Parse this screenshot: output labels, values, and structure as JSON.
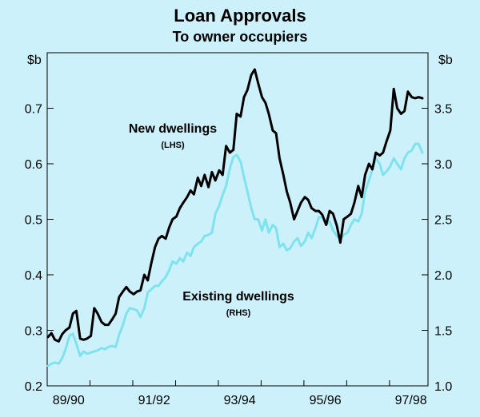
{
  "chart_data": {
    "type": "line",
    "title": "Loan Approvals",
    "subtitle": "To owner occupiers",
    "left_axis": {
      "unit": "$b",
      "ylim": [
        0.2,
        0.8
      ],
      "ticks": [
        0.2,
        0.3,
        0.4,
        0.5,
        0.6,
        0.7
      ],
      "tick_labels": [
        "0.2",
        "0.3",
        "0.4",
        "0.5",
        "0.6",
        "0.7"
      ]
    },
    "right_axis": {
      "unit": "$b",
      "ylim": [
        1.0,
        4.0
      ],
      "ticks": [
        1.0,
        1.5,
        2.0,
        2.5,
        3.0,
        3.5
      ],
      "tick_labels": [
        "1.0",
        "1.5",
        "2.0",
        "2.5",
        "3.0",
        "3.5"
      ]
    },
    "x_axis": {
      "xlim": [
        1989.5,
        1998.4
      ],
      "tick_labels": [
        "89/90",
        "91/92",
        "93/94",
        "95/96",
        "97/98"
      ],
      "tick_label_positions": [
        1990,
        1992,
        1994,
        1996,
        1998
      ],
      "minor_ticks": [
        1990.5,
        1991.5,
        1992.5,
        1993.5,
        1994.5,
        1995.5,
        1996.5,
        1997.5
      ]
    },
    "grid": false,
    "colors": {
      "background": "#cdf1fb",
      "new_dwellings": "#000000",
      "existing_dwellings": "#7fe3ef"
    },
    "annotations": {
      "new_main": "New dwellings",
      "new_sub": "(LHS)",
      "existing_main": "Existing dwellings",
      "existing_sub": "(RHS)"
    },
    "series": [
      {
        "name": "New dwellings",
        "axis": "left",
        "x": [
          1989.52,
          1989.6,
          1989.68,
          1989.77,
          1989.85,
          1989.93,
          1990.02,
          1990.1,
          1990.18,
          1990.27,
          1990.35,
          1990.43,
          1990.52,
          1990.6,
          1990.68,
          1990.77,
          1990.85,
          1990.93,
          1991.02,
          1991.1,
          1991.18,
          1991.27,
          1991.35,
          1991.43,
          1991.52,
          1991.6,
          1991.68,
          1991.77,
          1991.85,
          1991.93,
          1992.02,
          1992.1,
          1992.18,
          1992.27,
          1992.35,
          1992.43,
          1992.52,
          1992.6,
          1992.68,
          1992.77,
          1992.85,
          1992.93,
          1993.02,
          1993.1,
          1993.18,
          1993.27,
          1993.35,
          1993.43,
          1993.52,
          1993.6,
          1993.68,
          1993.77,
          1993.85,
          1993.93,
          1994.02,
          1994.1,
          1994.18,
          1994.27,
          1994.35,
          1994.43,
          1994.52,
          1994.6,
          1994.68,
          1994.77,
          1994.85,
          1994.93,
          1995.02,
          1995.1,
          1995.18,
          1995.27,
          1995.35,
          1995.43,
          1995.52,
          1995.6,
          1995.68,
          1995.77,
          1995.85,
          1995.93,
          1996.02,
          1996.1,
          1996.18,
          1996.27,
          1996.35,
          1996.43,
          1996.52,
          1996.6,
          1996.68,
          1996.77,
          1996.85,
          1996.93,
          1997.02,
          1997.1,
          1997.18,
          1997.27,
          1997.35,
          1997.43,
          1997.52,
          1997.6,
          1997.68,
          1997.77,
          1997.85,
          1997.93,
          1998.02,
          1998.1,
          1998.18,
          1998.27
        ],
        "values": [
          0.288,
          0.295,
          0.283,
          0.28,
          0.293,
          0.3,
          0.305,
          0.33,
          0.335,
          0.285,
          0.283,
          0.285,
          0.29,
          0.34,
          0.33,
          0.315,
          0.31,
          0.31,
          0.32,
          0.33,
          0.36,
          0.37,
          0.378,
          0.37,
          0.365,
          0.37,
          0.372,
          0.4,
          0.39,
          0.42,
          0.45,
          0.465,
          0.47,
          0.465,
          0.485,
          0.5,
          0.505,
          0.52,
          0.53,
          0.54,
          0.552,
          0.545,
          0.575,
          0.56,
          0.58,
          0.558,
          0.585,
          0.57,
          0.588,
          0.58,
          0.632,
          0.62,
          0.625,
          0.69,
          0.685,
          0.72,
          0.733,
          0.76,
          0.77,
          0.745,
          0.72,
          0.71,
          0.69,
          0.66,
          0.655,
          0.61,
          0.58,
          0.55,
          0.53,
          0.5,
          0.515,
          0.53,
          0.54,
          0.535,
          0.52,
          0.515,
          0.515,
          0.508,
          0.49,
          0.515,
          0.51,
          0.488,
          0.458,
          0.5,
          0.505,
          0.51,
          0.53,
          0.56,
          0.54,
          0.58,
          0.6,
          0.59,
          0.62,
          0.615,
          0.62,
          0.64,
          0.66,
          0.735,
          0.7,
          0.69,
          0.695,
          0.73,
          0.72,
          0.718,
          0.72,
          0.718
        ]
      },
      {
        "name": "Existing dwellings",
        "axis": "right",
        "x": [
          1989.52,
          1989.6,
          1989.68,
          1989.77,
          1989.85,
          1989.93,
          1990.02,
          1990.1,
          1990.18,
          1990.27,
          1990.35,
          1990.43,
          1990.52,
          1990.6,
          1990.68,
          1990.77,
          1990.85,
          1990.93,
          1991.02,
          1991.1,
          1991.18,
          1991.27,
          1991.35,
          1991.43,
          1991.52,
          1991.6,
          1991.68,
          1991.77,
          1991.85,
          1991.93,
          1992.02,
          1992.1,
          1992.18,
          1992.27,
          1992.35,
          1992.43,
          1992.52,
          1992.6,
          1992.68,
          1992.77,
          1992.85,
          1992.93,
          1993.02,
          1993.1,
          1993.18,
          1993.27,
          1993.35,
          1993.43,
          1993.52,
          1993.6,
          1993.68,
          1993.77,
          1993.85,
          1993.93,
          1994.02,
          1994.1,
          1994.18,
          1994.27,
          1994.35,
          1994.43,
          1994.52,
          1994.6,
          1994.68,
          1994.77,
          1994.85,
          1994.93,
          1995.02,
          1995.1,
          1995.18,
          1995.27,
          1995.35,
          1995.43,
          1995.52,
          1995.6,
          1995.68,
          1995.77,
          1995.85,
          1995.93,
          1996.02,
          1996.1,
          1996.18,
          1996.27,
          1996.35,
          1996.43,
          1996.52,
          1996.6,
          1996.68,
          1996.77,
          1996.85,
          1996.93,
          1997.02,
          1997.1,
          1997.18,
          1997.27,
          1997.35,
          1997.43,
          1997.52,
          1997.6,
          1997.68,
          1997.77,
          1997.85,
          1997.93,
          1998.02,
          1998.1,
          1998.18,
          1998.27
        ],
        "values": [
          1.18,
          1.2,
          1.21,
          1.2,
          1.25,
          1.33,
          1.45,
          1.47,
          1.38,
          1.27,
          1.31,
          1.29,
          1.3,
          1.31,
          1.32,
          1.34,
          1.33,
          1.35,
          1.36,
          1.35,
          1.46,
          1.55,
          1.65,
          1.7,
          1.69,
          1.68,
          1.62,
          1.7,
          1.84,
          1.87,
          1.9,
          1.9,
          1.94,
          1.98,
          2.04,
          2.12,
          2.1,
          2.15,
          2.12,
          2.2,
          2.17,
          2.25,
          2.28,
          2.3,
          2.35,
          2.36,
          2.38,
          2.55,
          2.62,
          2.72,
          2.8,
          2.96,
          3.06,
          3.08,
          3.02,
          2.88,
          2.75,
          2.6,
          2.5,
          2.5,
          2.4,
          2.5,
          2.38,
          2.45,
          2.42,
          2.25,
          2.28,
          2.22,
          2.24,
          2.3,
          2.33,
          2.26,
          2.3,
          2.38,
          2.33,
          2.42,
          2.52,
          2.52,
          2.45,
          2.48,
          2.4,
          2.35,
          2.32,
          2.36,
          2.38,
          2.45,
          2.5,
          2.48,
          2.55,
          2.75,
          2.85,
          2.95,
          3.05,
          3.0,
          2.9,
          2.93,
          2.98,
          3.05,
          3.0,
          2.95,
          3.05,
          3.1,
          3.12,
          3.18,
          3.18,
          3.1
        ]
      }
    ]
  }
}
